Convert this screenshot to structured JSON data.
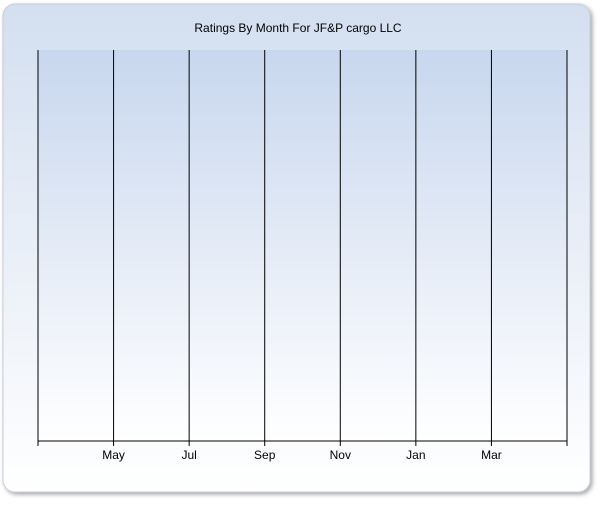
{
  "chart_data": {
    "type": "line",
    "title": "Ratings By Month For JF&P cargo LLC",
    "categories": [
      null,
      "May",
      "Jul",
      "Sep",
      "Nov",
      "Jan",
      "Mar",
      null
    ],
    "series": [],
    "grid": true
  }
}
